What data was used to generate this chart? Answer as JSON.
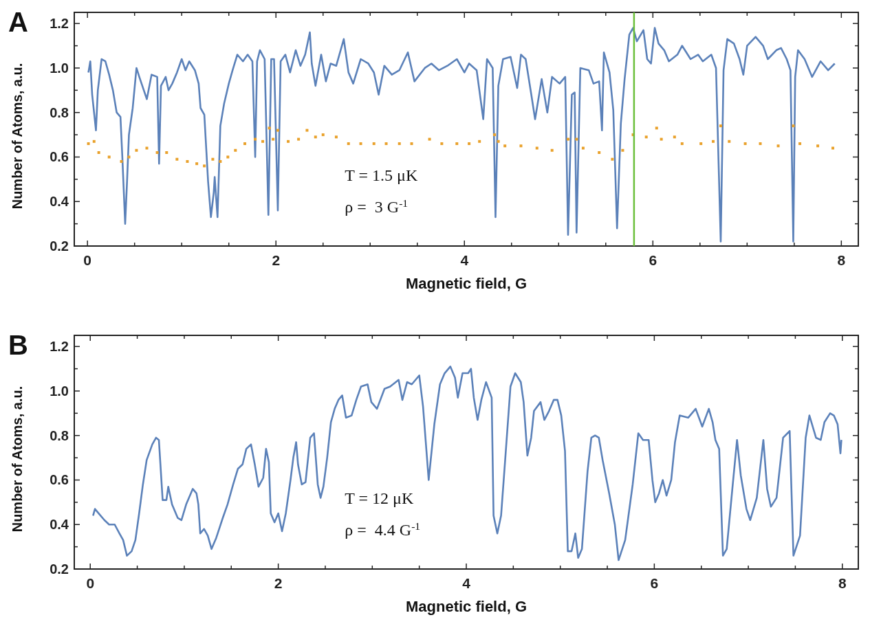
{
  "chart_data": [
    {
      "type": "line",
      "title": "A",
      "xlabel": "Magnetic field, G",
      "ylabel": "Number of Atoms, a.u.",
      "xlim": [
        -0.14,
        8.18
      ],
      "ylim": [
        0.2,
        1.25
      ],
      "xticks": [
        0,
        {
          "value": 0.5,
          "label": null
        },
        2,
        {
          "value": 1,
          "label": null
        },
        {
          "value": 1.5,
          "label": null
        },
        {
          "value": 2.5,
          "label": null
        },
        {
          "value": 3,
          "label": null
        },
        {
          "value": 3.5,
          "label": null
        },
        4,
        {
          "value": 4.5,
          "label": null
        },
        {
          "value": 5,
          "label": null
        },
        {
          "value": 5.5,
          "label": null
        },
        6,
        {
          "value": 6.5,
          "label": null
        },
        {
          "value": 7,
          "label": null
        },
        {
          "value": 7.5,
          "label": null
        },
        8
      ],
      "yticks": [
        0.2,
        {
          "value": 0.3,
          "label": null
        },
        0.4,
        {
          "value": 0.5,
          "label": null
        },
        0.6,
        {
          "value": 0.7,
          "label": null
        },
        0.8,
        {
          "value": 0.9,
          "label": null
        },
        {
          "value": 1,
          "label": "1.0"
        },
        {
          "value": 1.1,
          "label": null
        },
        1.2
      ],
      "grid": false,
      "annotations": [
        "T = 1.5 μK",
        "ρ =  3 G$^{-1}$"
      ],
      "ref_lines": [
        {
          "axis": "x",
          "value": 5.8,
          "color": "#6abf3a"
        }
      ],
      "series": [
        {
          "color": "#5b81b9",
          "x": [
            0.01,
            0.03,
            0.05,
            0.09,
            0.11,
            0.15,
            0.19,
            0.23,
            0.27,
            0.31,
            0.35,
            0.37,
            0.4,
            0.42,
            0.44,
            0.48,
            0.52,
            0.55,
            0.59,
            0.63,
            0.68,
            0.74,
            0.76,
            0.78,
            0.83,
            0.86,
            0.9,
            0.95,
            1,
            1.04,
            1.08,
            1.14,
            1.18,
            1.2,
            1.24,
            1.28,
            1.31,
            1.34,
            1.35,
            1.38,
            1.41,
            1.45,
            1.5,
            1.54,
            1.59,
            1.65,
            1.7,
            1.75,
            1.78,
            1.8,
            1.83,
            1.88,
            1.92,
            1.95,
            1.98,
            2.02,
            2.05,
            2.1,
            2.15,
            2.21,
            2.26,
            2.31,
            2.36,
            2.38,
            2.42,
            2.48,
            2.53,
            2.58,
            2.64,
            2.72,
            2.77,
            2.82,
            2.9,
            2.98,
            3.04,
            3.09,
            3.15,
            3.23,
            3.31,
            3.4,
            3.47,
            3.58,
            3.65,
            3.73,
            3.82,
            3.92,
            4,
            4.05,
            4.13,
            4.2,
            4.24,
            4.3,
            4.33,
            4.36,
            4.41,
            4.49,
            4.56,
            4.6,
            4.65,
            4.71,
            4.75,
            4.82,
            4.88,
            4.93,
            5.01,
            5.07,
            5.1,
            5.14,
            5.17,
            5.19,
            5.23,
            5.32,
            5.37,
            5.43,
            5.46,
            5.48,
            5.54,
            5.58,
            5.62,
            5.66,
            5.7,
            5.75,
            5.79,
            5.83,
            5.9,
            5.94,
            5.98,
            6.02,
            6.06,
            6.12,
            6.17,
            6.26,
            6.31,
            6.4,
            6.48,
            6.53,
            6.62,
            6.67,
            6.72,
            6.75,
            6.79,
            6.86,
            6.92,
            6.96,
            7,
            7.09,
            7.17,
            7.22,
            7.31,
            7.36,
            7.42,
            7.46,
            7.49,
            7.51,
            7.54,
            7.61,
            7.69,
            7.78,
            7.86,
            7.93
          ],
          "values": [
            0.98,
            1.03,
            0.88,
            0.72,
            0.9,
            1.04,
            1.03,
            0.97,
            0.9,
            0.8,
            0.78,
            0.6,
            0.3,
            0.49,
            0.7,
            0.82,
            1,
            0.96,
            0.91,
            0.86,
            0.97,
            0.96,
            0.57,
            0.92,
            0.96,
            0.9,
            0.93,
            0.98,
            1.04,
            0.99,
            1.03,
            0.99,
            0.93,
            0.82,
            0.79,
            0.49,
            0.33,
            0.44,
            0.51,
            0.33,
            0.74,
            0.84,
            0.93,
            0.99,
            1.06,
            1.03,
            1.06,
            1.03,
            0.6,
            1.03,
            1.08,
            1.04,
            0.34,
            1.04,
            1.04,
            0.36,
            1.03,
            1.06,
            0.98,
            1.08,
            1.01,
            1.06,
            1.16,
            1.02,
            0.92,
            1.06,
            0.94,
            1.02,
            1.01,
            1.13,
            0.98,
            0.93,
            1.04,
            1.02,
            0.98,
            0.88,
            1.01,
            0.97,
            0.99,
            1.07,
            0.94,
            1,
            1.02,
            0.99,
            1.01,
            1.04,
            0.98,
            1.02,
            0.99,
            0.77,
            1.04,
            1,
            0.33,
            0.92,
            1.04,
            1.05,
            0.91,
            1.06,
            1.04,
            0.88,
            0.77,
            0.95,
            0.8,
            0.96,
            0.93,
            0.96,
            0.25,
            0.88,
            0.89,
            0.26,
            1,
            0.99,
            0.93,
            0.94,
            0.72,
            1.07,
            0.98,
            0.81,
            0.28,
            0.75,
            0.95,
            1.15,
            1.18,
            1.12,
            1.17,
            1.04,
            1.02,
            1.18,
            1.11,
            1.08,
            1.03,
            1.06,
            1.1,
            1.04,
            1.06,
            1.03,
            1.06,
            1,
            0.22,
            0.99,
            1.13,
            1.11,
            1.04,
            0.97,
            1.1,
            1.14,
            1.1,
            1.04,
            1.08,
            1.09,
            1.04,
            0.99,
            0.22,
            0.96,
            1.08,
            1.04,
            0.96,
            1.03,
            0.99,
            1.02
          ]
        },
        {
          "type": "scatter",
          "marker": "square",
          "color": "#e9a12b",
          "x": [
            0.01,
            0.07,
            0.12,
            0.23,
            0.36,
            0.44,
            0.52,
            0.63,
            0.74,
            0.84,
            0.95,
            1.06,
            1.16,
            1.24,
            1.33,
            1.41,
            1.49,
            1.57,
            1.67,
            1.78,
            1.86,
            1.93,
            1.97,
            2.02,
            2.13,
            2.24,
            2.33,
            2.42,
            2.5,
            2.64,
            2.77,
            2.9,
            3.04,
            3.17,
            3.31,
            3.44,
            3.63,
            3.76,
            3.92,
            4.05,
            4.16,
            4.32,
            4.36,
            4.43,
            4.6,
            4.77,
            4.93,
            5.1,
            5.19,
            5.26,
            5.43,
            5.57,
            5.68,
            5.79,
            5.93,
            6.04,
            6.09,
            6.23,
            6.31,
            6.51,
            6.64,
            6.72,
            6.81,
            6.98,
            7.14,
            7.33,
            7.49,
            7.56,
            7.75,
            7.91
          ],
          "values": [
            0.66,
            0.67,
            0.62,
            0.6,
            0.58,
            0.6,
            0.63,
            0.64,
            0.62,
            0.62,
            0.59,
            0.58,
            0.57,
            0.56,
            0.59,
            0.58,
            0.6,
            0.63,
            0.66,
            0.68,
            0.67,
            0.73,
            0.68,
            0.72,
            0.67,
            0.68,
            0.72,
            0.69,
            0.7,
            0.69,
            0.66,
            0.66,
            0.66,
            0.66,
            0.66,
            0.66,
            0.68,
            0.66,
            0.66,
            0.66,
            0.67,
            0.7,
            0.67,
            0.65,
            0.65,
            0.64,
            0.63,
            0.68,
            0.68,
            0.64,
            0.62,
            0.59,
            0.63,
            0.7,
            0.69,
            0.73,
            0.68,
            0.69,
            0.66,
            0.66,
            0.67,
            0.74,
            0.67,
            0.66,
            0.66,
            0.65,
            0.74,
            0.66,
            0.65,
            0.64
          ]
        }
      ]
    },
    {
      "type": "line",
      "title": "B",
      "xlabel": "Magnetic field, G",
      "ylabel": "Number of Atoms, a.u.",
      "xlim": [
        -0.17,
        8.17
      ],
      "ylim": [
        0.2,
        1.25
      ],
      "xticks": [
        0,
        {
          "value": 0.5,
          "label": null
        },
        {
          "value": 1,
          "label": null
        },
        {
          "value": 1.5,
          "label": null
        },
        2,
        {
          "value": 2.5,
          "label": null
        },
        {
          "value": 3,
          "label": null
        },
        {
          "value": 3.5,
          "label": null
        },
        4,
        {
          "value": 4.5,
          "label": null
        },
        {
          "value": 5,
          "label": null
        },
        {
          "value": 5.5,
          "label": null
        },
        6,
        {
          "value": 6.5,
          "label": null
        },
        {
          "value": 7,
          "label": null
        },
        {
          "value": 7.5,
          "label": null
        },
        8
      ],
      "yticks": [
        0.2,
        {
          "value": 0.3,
          "label": null
        },
        0.4,
        {
          "value": 0.5,
          "label": null
        },
        0.6,
        {
          "value": 0.7,
          "label": null
        },
        0.8,
        {
          "value": 0.9,
          "label": null
        },
        {
          "value": 1,
          "label": "1.0"
        },
        {
          "value": 1.1,
          "label": null
        },
        1.2
      ],
      "grid": false,
      "annotations": [
        "T = 12 μK",
        "ρ =  4.4 G$^{-1}$"
      ],
      "series": [
        {
          "color": "#5b81b9",
          "x": [
            0.03,
            0.05,
            0.09,
            0.15,
            0.2,
            0.26,
            0.31,
            0.35,
            0.39,
            0.44,
            0.48,
            0.52,
            0.56,
            0.6,
            0.66,
            0.7,
            0.73,
            0.77,
            0.81,
            0.83,
            0.87,
            0.93,
            0.97,
            1.02,
            1.09,
            1.13,
            1.15,
            1.17,
            1.21,
            1.25,
            1.29,
            1.34,
            1.41,
            1.46,
            1.52,
            1.57,
            1.62,
            1.66,
            1.71,
            1.75,
            1.79,
            1.84,
            1.87,
            1.9,
            1.92,
            1.96,
            2,
            2.04,
            2.08,
            2.13,
            2.16,
            2.19,
            2.21,
            2.25,
            2.29,
            2.34,
            2.38,
            2.42,
            2.45,
            2.48,
            2.52,
            2.56,
            2.6,
            2.64,
            2.68,
            2.72,
            2.78,
            2.83,
            2.88,
            2.95,
            2.99,
            3.05,
            3.13,
            3.19,
            3.28,
            3.32,
            3.37,
            3.42,
            3.5,
            3.54,
            3.6,
            3.66,
            3.72,
            3.77,
            3.83,
            3.88,
            3.91,
            3.96,
            4.02,
            4.05,
            4.08,
            4.12,
            4.16,
            4.21,
            4.27,
            4.29,
            4.33,
            4.37,
            4.41,
            4.47,
            4.52,
            4.58,
            4.61,
            4.65,
            4.69,
            4.72,
            4.79,
            4.83,
            4.88,
            4.93,
            4.97,
            5.01,
            5.05,
            5.08,
            5.12,
            5.16,
            5.19,
            5.23,
            5.29,
            5.33,
            5.37,
            5.41,
            5.45,
            5.52,
            5.58,
            5.62,
            5.69,
            5.77,
            5.83,
            5.88,
            5.94,
            5.98,
            6.01,
            6.05,
            6.09,
            6.13,
            6.18,
            6.22,
            6.27,
            6.36,
            6.44,
            6.51,
            6.58,
            6.62,
            6.65,
            6.69,
            6.73,
            6.77,
            6.83,
            6.88,
            6.92,
            6.98,
            7.02,
            7.09,
            7.16,
            7.2,
            7.24,
            7.3,
            7.37,
            7.44,
            7.48,
            7.55,
            7.61,
            7.65,
            7.72,
            7.77,
            7.81,
            7.87,
            7.91,
            7.95,
            7.98,
            7.99
          ],
          "values": [
            0.44,
            0.47,
            0.45,
            0.42,
            0.4,
            0.4,
            0.36,
            0.33,
            0.26,
            0.28,
            0.33,
            0.45,
            0.58,
            0.69,
            0.76,
            0.79,
            0.78,
            0.51,
            0.51,
            0.57,
            0.49,
            0.43,
            0.42,
            0.49,
            0.56,
            0.54,
            0.49,
            0.36,
            0.38,
            0.35,
            0.29,
            0.34,
            0.43,
            0.49,
            0.58,
            0.65,
            0.67,
            0.74,
            0.76,
            0.67,
            0.57,
            0.61,
            0.74,
            0.68,
            0.45,
            0.41,
            0.45,
            0.37,
            0.45,
            0.6,
            0.7,
            0.77,
            0.67,
            0.58,
            0.59,
            0.79,
            0.81,
            0.58,
            0.52,
            0.57,
            0.7,
            0.86,
            0.92,
            0.96,
            0.98,
            0.88,
            0.89,
            0.96,
            1.02,
            1.03,
            0.95,
            0.92,
            1.01,
            1.02,
            1.05,
            0.96,
            1.04,
            1.03,
            1.07,
            0.93,
            0.6,
            0.85,
            1.03,
            1.08,
            1.11,
            1.06,
            0.97,
            1.08,
            1.08,
            1.1,
            0.97,
            0.87,
            0.96,
            1.04,
            0.97,
            0.44,
            0.36,
            0.44,
            0.67,
            1.02,
            1.08,
            1.04,
            0.95,
            0.71,
            0.79,
            0.91,
            0.95,
            0.87,
            0.91,
            0.96,
            0.96,
            0.89,
            0.73,
            0.28,
            0.28,
            0.36,
            0.25,
            0.29,
            0.64,
            0.79,
            0.8,
            0.79,
            0.69,
            0.54,
            0.4,
            0.24,
            0.33,
            0.58,
            0.81,
            0.78,
            0.78,
            0.6,
            0.5,
            0.54,
            0.6,
            0.53,
            0.6,
            0.77,
            0.89,
            0.88,
            0.92,
            0.84,
            0.92,
            0.86,
            0.78,
            0.74,
            0.26,
            0.29,
            0.56,
            0.78,
            0.62,
            0.47,
            0.42,
            0.52,
            0.78,
            0.56,
            0.48,
            0.52,
            0.79,
            0.82,
            0.26,
            0.35,
            0.79,
            0.89,
            0.79,
            0.78,
            0.86,
            0.9,
            0.89,
            0.85,
            0.72,
            0.78
          ]
        }
      ]
    }
  ]
}
